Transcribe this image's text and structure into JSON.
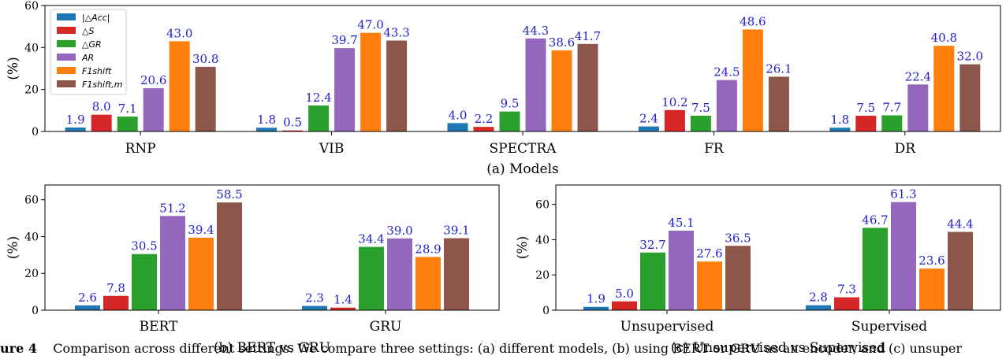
{
  "legend": [
    {
      "label": "|△Acc|",
      "color": "#1f77b4"
    },
    {
      "label": "△S",
      "color": "#d62728"
    },
    {
      "label": "△GR",
      "color": "#2ca02c"
    },
    {
      "label": "AR",
      "color": "#9467bd"
    },
    {
      "label": "F1shift",
      "color": "#ff7f0e"
    },
    {
      "label": "F1shift,m",
      "color": "#8c564b"
    }
  ],
  "caption": {
    "prefix": "ure 4",
    "text": "Comparison across different settings. We compare three settings: (a) different models, (b) using BERT or GRU as an encoder, and (c) unsuper"
  },
  "chart_data": [
    {
      "type": "bar",
      "title": "(a) Models",
      "ylabel": "(%)",
      "ylim": [
        0,
        60
      ],
      "yticks": [
        0,
        20,
        40,
        60
      ],
      "categories": [
        "RNP",
        "VIB",
        "SPECTRA",
        "FR",
        "DR"
      ],
      "series": [
        {
          "name": "|△Acc|",
          "values": [
            1.9,
            1.8,
            4.0,
            2.4,
            1.8
          ]
        },
        {
          "name": "△S",
          "values": [
            8.0,
            0.5,
            2.2,
            10.2,
            7.5
          ]
        },
        {
          "name": "△GR",
          "values": [
            7.1,
            12.4,
            9.5,
            7.5,
            7.7
          ]
        },
        {
          "name": "AR",
          "values": [
            20.6,
            39.7,
            44.3,
            24.5,
            22.4
          ]
        },
        {
          "name": "F1shift",
          "values": [
            43.0,
            47.0,
            38.6,
            48.6,
            40.8
          ]
        },
        {
          "name": "F1shift,m",
          "values": [
            30.8,
            43.3,
            41.7,
            26.1,
            32.0
          ]
        }
      ],
      "legend_position": "top-left"
    },
    {
      "type": "bar",
      "title": "(b) BERT vs GRU",
      "ylabel": "(%)",
      "ylim": [
        0,
        68
      ],
      "yticks": [
        0,
        20,
        40,
        60
      ],
      "categories": [
        "BERT",
        "GRU"
      ],
      "series": [
        {
          "name": "|△Acc|",
          "values": [
            2.6,
            2.3
          ]
        },
        {
          "name": "△S",
          "values": [
            7.8,
            1.4
          ]
        },
        {
          "name": "△GR",
          "values": [
            30.5,
            34.4
          ]
        },
        {
          "name": "AR",
          "values": [
            51.2,
            39.0
          ]
        },
        {
          "name": "F1shift",
          "values": [
            39.4,
            28.9
          ]
        },
        {
          "name": "F1shift,m",
          "values": [
            58.5,
            39.1
          ]
        }
      ]
    },
    {
      "type": "bar",
      "title": "(c) Unsupervised vs Supervised",
      "ylabel": "(%)",
      "ylim": [
        0,
        71
      ],
      "yticks": [
        0,
        20,
        40,
        60
      ],
      "categories": [
        "Unsupervised",
        "Supervised"
      ],
      "series": [
        {
          "name": "|△Acc|",
          "values": [
            1.9,
            2.8
          ]
        },
        {
          "name": "△S",
          "values": [
            5.0,
            7.3
          ]
        },
        {
          "name": "△GR",
          "values": [
            32.7,
            46.7
          ]
        },
        {
          "name": "AR",
          "values": [
            45.1,
            61.3
          ]
        },
        {
          "name": "F1shift",
          "values": [
            27.6,
            23.6
          ]
        },
        {
          "name": "F1shift,m",
          "values": [
            36.5,
            44.4
          ]
        }
      ]
    }
  ]
}
